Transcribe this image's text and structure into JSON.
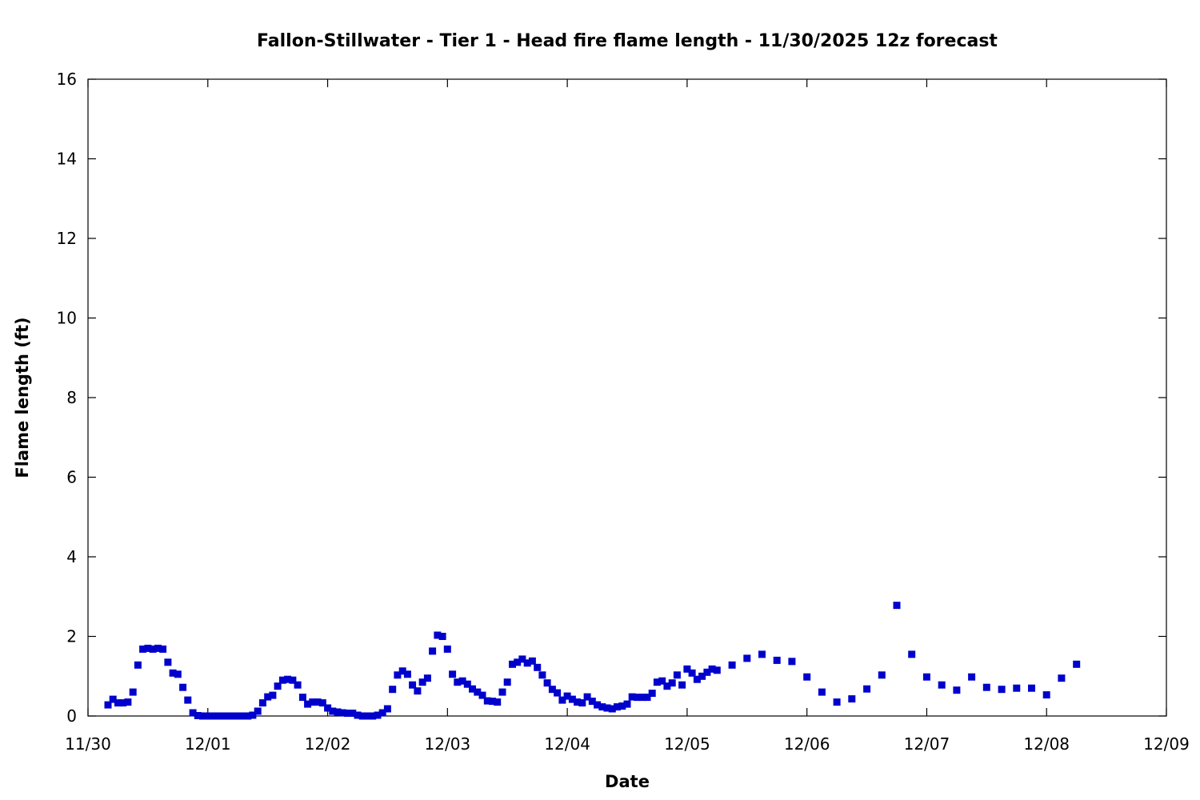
{
  "chart_data": {
    "type": "scatter",
    "title": "Fallon-Stillwater - Tier 1 - Head fire flame length - 11/30/2025 12z forecast",
    "xlabel": "Date",
    "ylabel": "Flame length (ft)",
    "xlim": [
      "2025-11-30T00:00",
      "2025-12-09T00:00"
    ],
    "ylim": [
      0,
      16
    ],
    "x_ticks": [
      "11/30",
      "12/01",
      "12/02",
      "12/03",
      "12/04",
      "12/05",
      "12/06",
      "12/07",
      "12/08",
      "12/09"
    ],
    "y_ticks": [
      "0",
      "2",
      "4",
      "6",
      "8",
      "10",
      "12",
      "14",
      "16"
    ],
    "grid": false,
    "legend": "none",
    "marker_color": "#0000CC",
    "marker": "square",
    "series": [
      {
        "points": [
          [
            "2025-11-30T04:00",
            0.28
          ],
          [
            "2025-11-30T05:00",
            0.42
          ],
          [
            "2025-11-30T06:00",
            0.33
          ],
          [
            "2025-11-30T07:00",
            0.33
          ],
          [
            "2025-11-30T08:00",
            0.35
          ],
          [
            "2025-11-30T09:00",
            0.6
          ],
          [
            "2025-11-30T10:00",
            1.28
          ],
          [
            "2025-11-30T11:00",
            1.68
          ],
          [
            "2025-11-30T12:00",
            1.7
          ],
          [
            "2025-11-30T13:00",
            1.68
          ],
          [
            "2025-11-30T14:00",
            1.7
          ],
          [
            "2025-11-30T15:00",
            1.68
          ],
          [
            "2025-11-30T16:00",
            1.35
          ],
          [
            "2025-11-30T17:00",
            1.08
          ],
          [
            "2025-11-30T18:00",
            1.05
          ],
          [
            "2025-11-30T19:00",
            0.72
          ],
          [
            "2025-11-30T20:00",
            0.4
          ],
          [
            "2025-11-30T21:00",
            0.08
          ],
          [
            "2025-11-30T22:00",
            0.01
          ],
          [
            "2025-11-30T23:00",
            0.0
          ],
          [
            "2025-12-01T00:00",
            0.0
          ],
          [
            "2025-12-01T01:00",
            0.0
          ],
          [
            "2025-12-01T02:00",
            0.0
          ],
          [
            "2025-12-01T03:00",
            0.0
          ],
          [
            "2025-12-01T04:00",
            0.0
          ],
          [
            "2025-12-01T05:00",
            0.0
          ],
          [
            "2025-12-01T06:00",
            0.0
          ],
          [
            "2025-12-01T07:00",
            0.0
          ],
          [
            "2025-12-01T08:00",
            0.0
          ],
          [
            "2025-12-01T09:00",
            0.02
          ],
          [
            "2025-12-01T10:00",
            0.12
          ],
          [
            "2025-12-01T11:00",
            0.33
          ],
          [
            "2025-12-01T12:00",
            0.48
          ],
          [
            "2025-12-01T13:00",
            0.52
          ],
          [
            "2025-12-01T14:00",
            0.75
          ],
          [
            "2025-12-01T15:00",
            0.9
          ],
          [
            "2025-12-01T16:00",
            0.92
          ],
          [
            "2025-12-01T17:00",
            0.9
          ],
          [
            "2025-12-01T18:00",
            0.78
          ],
          [
            "2025-12-01T19:00",
            0.47
          ],
          [
            "2025-12-01T20:00",
            0.3
          ],
          [
            "2025-12-01T21:00",
            0.35
          ],
          [
            "2025-12-01T22:00",
            0.35
          ],
          [
            "2025-12-01T23:00",
            0.33
          ],
          [
            "2025-12-02T00:00",
            0.2
          ],
          [
            "2025-12-02T01:00",
            0.12
          ],
          [
            "2025-12-02T02:00",
            0.1
          ],
          [
            "2025-12-02T03:00",
            0.08
          ],
          [
            "2025-12-02T04:00",
            0.07
          ],
          [
            "2025-12-02T05:00",
            0.07
          ],
          [
            "2025-12-02T06:00",
            0.02
          ],
          [
            "2025-12-02T07:00",
            0.0
          ],
          [
            "2025-12-02T08:00",
            0.0
          ],
          [
            "2025-12-02T09:00",
            0.0
          ],
          [
            "2025-12-02T10:00",
            0.02
          ],
          [
            "2025-12-02T11:00",
            0.08
          ],
          [
            "2025-12-02T12:00",
            0.18
          ],
          [
            "2025-12-02T13:00",
            0.67
          ],
          [
            "2025-12-02T14:00",
            1.03
          ],
          [
            "2025-12-02T15:00",
            1.13
          ],
          [
            "2025-12-02T16:00",
            1.05
          ],
          [
            "2025-12-02T17:00",
            0.78
          ],
          [
            "2025-12-02T18:00",
            0.63
          ],
          [
            "2025-12-02T19:00",
            0.85
          ],
          [
            "2025-12-02T20:00",
            0.95
          ],
          [
            "2025-12-02T21:00",
            1.63
          ],
          [
            "2025-12-02T22:00",
            2.03
          ],
          [
            "2025-12-02T23:00",
            2.0
          ],
          [
            "2025-12-03T00:00",
            1.68
          ],
          [
            "2025-12-03T01:00",
            1.05
          ],
          [
            "2025-12-03T02:00",
            0.85
          ],
          [
            "2025-12-03T03:00",
            0.88
          ],
          [
            "2025-12-03T04:00",
            0.8
          ],
          [
            "2025-12-03T05:00",
            0.68
          ],
          [
            "2025-12-03T06:00",
            0.6
          ],
          [
            "2025-12-03T07:00",
            0.52
          ],
          [
            "2025-12-03T08:00",
            0.38
          ],
          [
            "2025-12-03T09:00",
            0.37
          ],
          [
            "2025-12-03T10:00",
            0.35
          ],
          [
            "2025-12-03T11:00",
            0.6
          ],
          [
            "2025-12-03T12:00",
            0.85
          ],
          [
            "2025-12-03T13:00",
            1.3
          ],
          [
            "2025-12-03T14:00",
            1.35
          ],
          [
            "2025-12-03T15:00",
            1.43
          ],
          [
            "2025-12-03T16:00",
            1.33
          ],
          [
            "2025-12-03T17:00",
            1.38
          ],
          [
            "2025-12-03T18:00",
            1.22
          ],
          [
            "2025-12-03T19:00",
            1.03
          ],
          [
            "2025-12-03T20:00",
            0.83
          ],
          [
            "2025-12-03T21:00",
            0.67
          ],
          [
            "2025-12-03T22:00",
            0.58
          ],
          [
            "2025-12-03T23:00",
            0.4
          ],
          [
            "2025-12-04T00:00",
            0.5
          ],
          [
            "2025-12-04T01:00",
            0.42
          ],
          [
            "2025-12-04T02:00",
            0.35
          ],
          [
            "2025-12-04T03:00",
            0.33
          ],
          [
            "2025-12-04T04:00",
            0.48
          ],
          [
            "2025-12-04T05:00",
            0.37
          ],
          [
            "2025-12-04T06:00",
            0.28
          ],
          [
            "2025-12-04T07:00",
            0.23
          ],
          [
            "2025-12-04T08:00",
            0.2
          ],
          [
            "2025-12-04T09:00",
            0.18
          ],
          [
            "2025-12-04T10:00",
            0.23
          ],
          [
            "2025-12-04T11:00",
            0.25
          ],
          [
            "2025-12-04T12:00",
            0.3
          ],
          [
            "2025-12-04T13:00",
            0.48
          ],
          [
            "2025-12-04T14:00",
            0.47
          ],
          [
            "2025-12-04T15:00",
            0.47
          ],
          [
            "2025-12-04T16:00",
            0.47
          ],
          [
            "2025-12-04T17:00",
            0.57
          ],
          [
            "2025-12-04T18:00",
            0.85
          ],
          [
            "2025-12-04T19:00",
            0.88
          ],
          [
            "2025-12-04T20:00",
            0.75
          ],
          [
            "2025-12-04T21:00",
            0.83
          ],
          [
            "2025-12-04T22:00",
            1.03
          ],
          [
            "2025-12-04T23:00",
            0.78
          ],
          [
            "2025-12-05T00:00",
            1.18
          ],
          [
            "2025-12-05T01:00",
            1.08
          ],
          [
            "2025-12-05T02:00",
            0.92
          ],
          [
            "2025-12-05T03:00",
            1.0
          ],
          [
            "2025-12-05T04:00",
            1.1
          ],
          [
            "2025-12-05T05:00",
            1.18
          ],
          [
            "2025-12-05T06:00",
            1.15
          ],
          [
            "2025-12-05T09:00",
            1.28
          ],
          [
            "2025-12-05T12:00",
            1.45
          ],
          [
            "2025-12-05T15:00",
            1.55
          ],
          [
            "2025-12-05T18:00",
            1.4
          ],
          [
            "2025-12-05T21:00",
            1.37
          ],
          [
            "2025-12-06T00:00",
            0.98
          ],
          [
            "2025-12-06T03:00",
            0.6
          ],
          [
            "2025-12-06T06:00",
            0.35
          ],
          [
            "2025-12-06T09:00",
            0.43
          ],
          [
            "2025-12-06T12:00",
            0.68
          ],
          [
            "2025-12-06T15:00",
            1.03
          ],
          [
            "2025-12-06T18:00",
            2.78
          ],
          [
            "2025-12-06T21:00",
            1.55
          ],
          [
            "2025-12-07T00:00",
            0.98
          ],
          [
            "2025-12-07T03:00",
            0.78
          ],
          [
            "2025-12-07T06:00",
            0.65
          ],
          [
            "2025-12-07T09:00",
            0.98
          ],
          [
            "2025-12-07T12:00",
            0.72
          ],
          [
            "2025-12-07T15:00",
            0.67
          ],
          [
            "2025-12-07T18:00",
            0.7
          ],
          [
            "2025-12-07T21:00",
            0.7
          ],
          [
            "2025-12-08T00:00",
            0.53
          ],
          [
            "2025-12-08T03:00",
            0.95
          ],
          [
            "2025-12-08T06:00",
            1.3
          ]
        ]
      }
    ]
  }
}
